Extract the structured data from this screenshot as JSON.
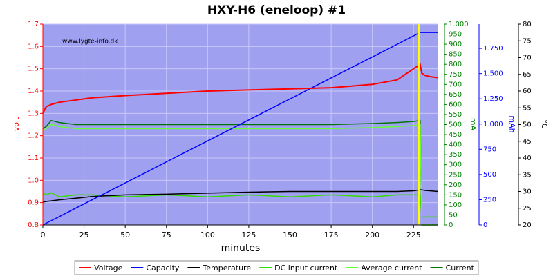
{
  "chart_data": {
    "type": "line",
    "title": "HXY-H6 (eneloop) #1",
    "watermark": "www.lygte-info.dk",
    "xlabel": "minutes",
    "xlim": [
      0,
      240
    ],
    "xticks": [
      0,
      25,
      50,
      75,
      100,
      125,
      150,
      175,
      200,
      225
    ],
    "ylabel": "volt",
    "ylim": [
      0.8,
      1.7
    ],
    "yticks": [
      0.8,
      0.9,
      {
        "value": 1,
        "label": "1.0"
      },
      1.1,
      1.2,
      1.3,
      1.4,
      1.5,
      1.6,
      1.7
    ],
    "y2label": "mA",
    "y2lim": [
      0,
      1000
    ],
    "y2ticks": [
      0,
      50,
      100,
      150,
      200,
      250,
      300,
      350,
      400,
      450,
      500,
      550,
      600,
      650,
      700,
      750,
      800,
      850,
      900,
      950,
      {
        "value": 1000,
        "label": "1.000"
      }
    ],
    "y3label": "mAh",
    "y3lim": [
      0,
      1990
    ],
    "y3ticks": [
      0,
      250,
      500,
      750,
      {
        "value": 1000,
        "label": "1.000"
      },
      {
        "value": 1250,
        "label": "1.250"
      },
      {
        "value": 1500,
        "label": "1.500"
      },
      {
        "value": 1750,
        "label": "1.750"
      }
    ],
    "y4label": "°C",
    "y4lim": [
      20,
      80
    ],
    "y4ticks": [
      20,
      25,
      30,
      35,
      40,
      45,
      50,
      55,
      60,
      65,
      70,
      75,
      80
    ],
    "axis_colors": {
      "y": "#ff0000",
      "y2": "#008000",
      "y3": "#0000ff",
      "y4": "#000000"
    },
    "grid": true,
    "legend": "bottom",
    "x": [
      0,
      2,
      5,
      10,
      20,
      30,
      50,
      75,
      100,
      125,
      150,
      175,
      200,
      215,
      225,
      229,
      230,
      232,
      235,
      240
    ],
    "series": [
      {
        "name": "Voltage",
        "color": "#ff0000",
        "axis": "y",
        "values": [
          1.3,
          1.33,
          1.34,
          1.35,
          1.36,
          1.37,
          1.38,
          1.39,
          1.4,
          1.405,
          1.41,
          1.415,
          1.43,
          1.45,
          1.5,
          1.52,
          1.48,
          1.47,
          1.465,
          1.46
        ]
      },
      {
        "name": "Capacity",
        "color": "#0000ff",
        "axis": "y3",
        "values": [
          0,
          17,
          42,
          83,
          167,
          250,
          416,
          625,
          833,
          1041,
          1249,
          1457,
          1665,
          1790,
          1874,
          1907,
          1907,
          1907,
          1907,
          1907
        ]
      },
      {
        "name": "Temperature",
        "color": "#000000",
        "axis": "y4",
        "values": [
          26.8,
          27,
          27.2,
          27.5,
          28,
          28.5,
          29,
          29.2,
          29.5,
          29.8,
          30,
          30,
          30,
          30,
          30.2,
          30.5,
          30.5,
          30.3,
          30.2,
          30
        ]
      },
      {
        "name": "DC input current",
        "color": "#33dd00",
        "axis": "y2",
        "values": [
          160,
          150,
          160,
          140,
          150,
          150,
          140,
          150,
          140,
          150,
          140,
          150,
          140,
          150,
          150,
          150,
          40,
          40,
          40,
          40
        ]
      },
      {
        "name": "Average current",
        "color": "#66ff33",
        "axis": "y2",
        "values": [
          470,
          480,
          500,
          490,
          480,
          480,
          480,
          480,
          480,
          480,
          480,
          480,
          485,
          490,
          495,
          500,
          0,
          0,
          0,
          0
        ]
      },
      {
        "name": "Current",
        "color": "#007700",
        "axis": "y2",
        "values": [
          480,
          490,
          520,
          510,
          500,
          500,
          500,
          500,
          500,
          500,
          500,
          500,
          505,
          510,
          515,
          520,
          0,
          0,
          0,
          0
        ]
      }
    ]
  }
}
